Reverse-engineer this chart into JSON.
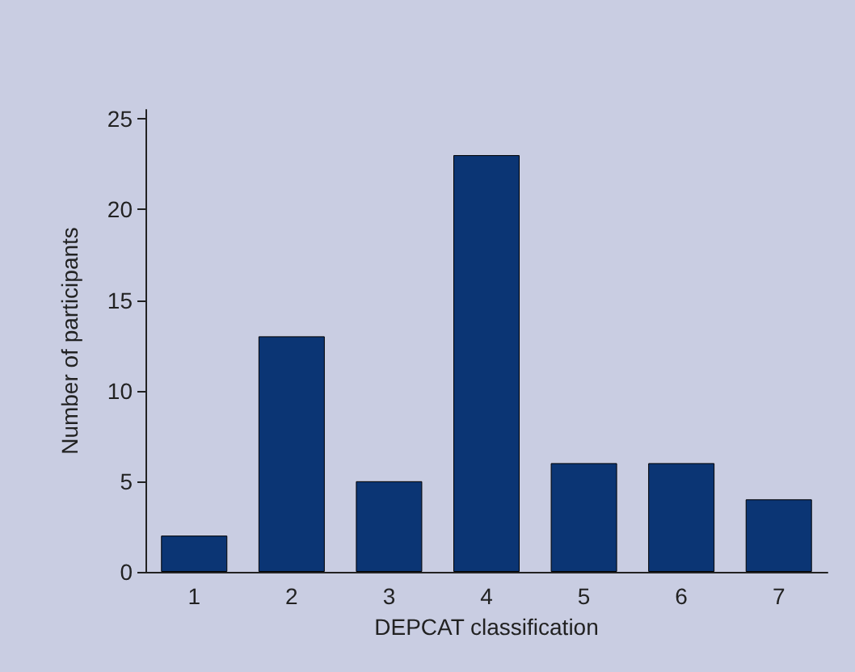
{
  "chart_data": {
    "type": "bar",
    "xlabel": "DEPCAT classification",
    "ylabel": "Number of participants",
    "categories": [
      "1",
      "2",
      "3",
      "4",
      "5",
      "6",
      "7"
    ],
    "values": [
      2,
      13,
      5,
      23,
      6,
      6,
      4
    ],
    "color": "#0b3574",
    "ylim": [
      0,
      25.5
    ],
    "yticks": [
      0,
      5,
      10,
      15,
      20,
      25
    ],
    "grid": false
  }
}
